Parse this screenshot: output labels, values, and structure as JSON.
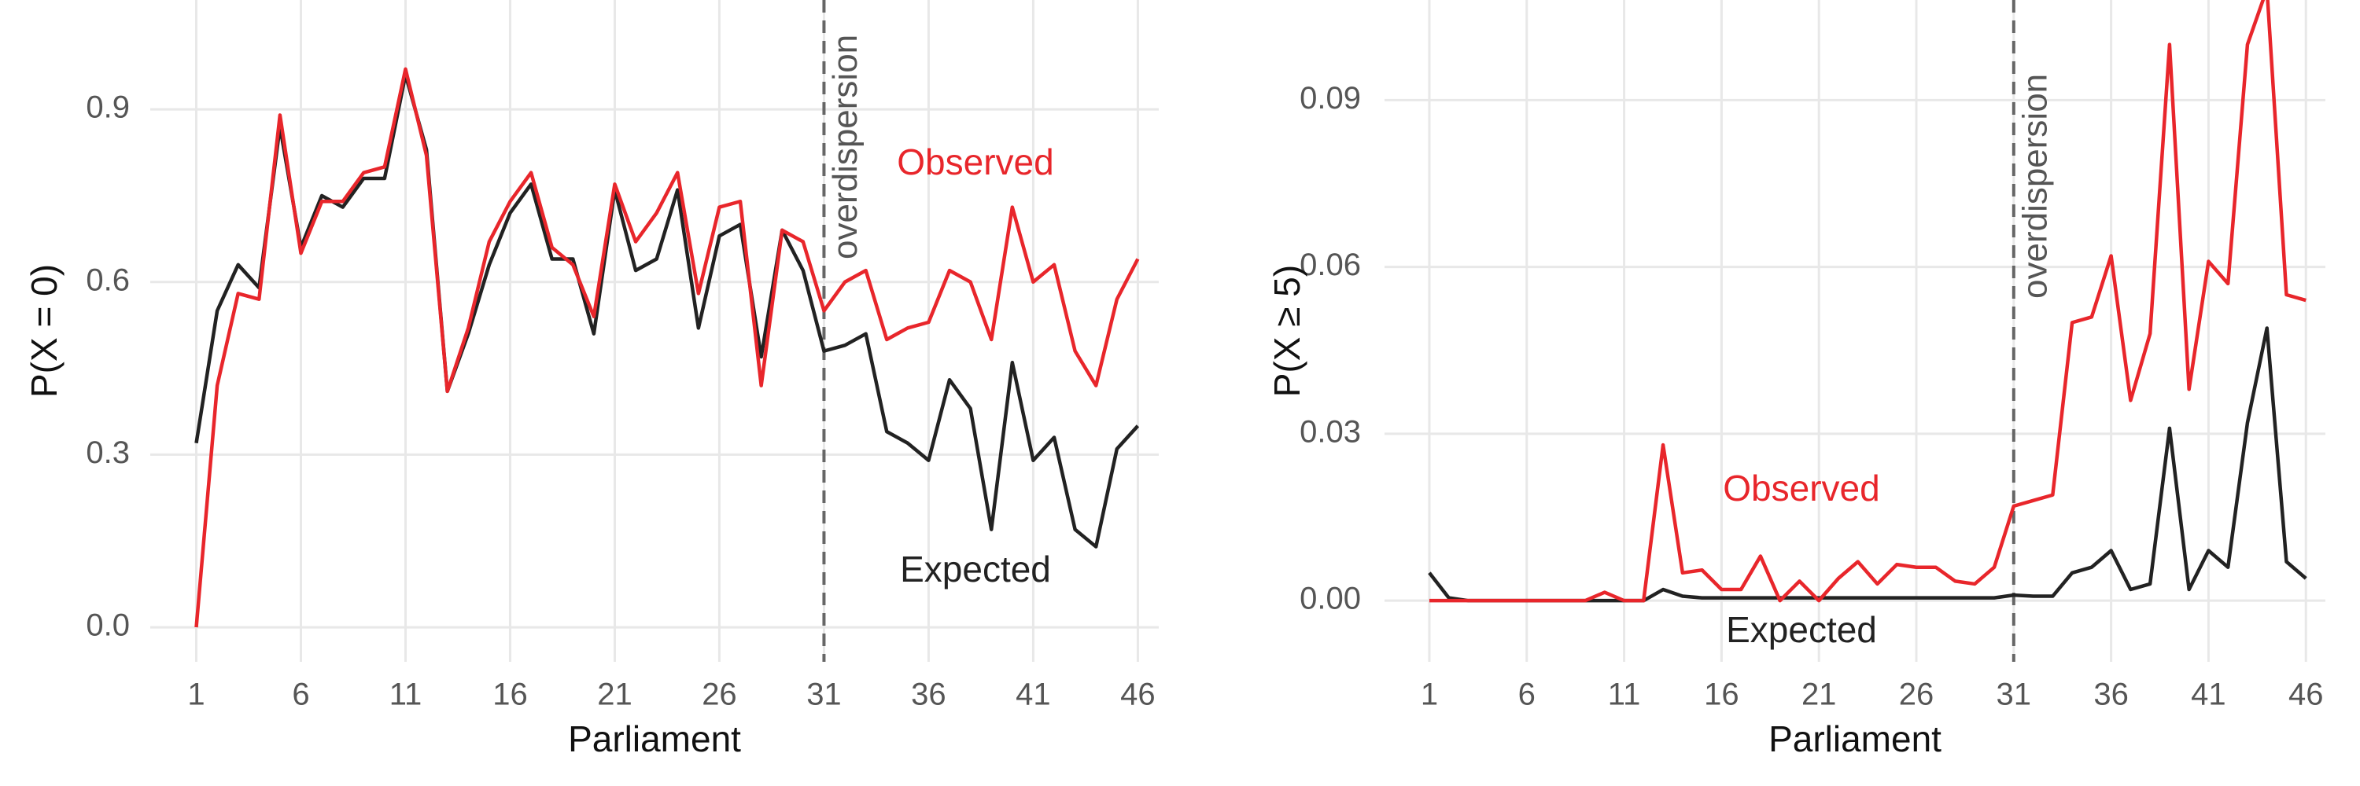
{
  "chart_data": [
    {
      "type": "line",
      "ylabel": "P(X = 0)",
      "xlabel": "Parliament",
      "x": [
        1,
        2,
        3,
        4,
        5,
        6,
        7,
        8,
        9,
        10,
        11,
        12,
        13,
        14,
        15,
        16,
        17,
        18,
        19,
        20,
        21,
        22,
        23,
        24,
        25,
        26,
        27,
        28,
        29,
        30,
        31,
        32,
        33,
        34,
        35,
        36,
        37,
        38,
        39,
        40,
        41,
        42,
        43,
        44,
        45,
        46
      ],
      "series": [
        {
          "name": "Expected",
          "color": "#222222",
          "values": [
            0.32,
            0.55,
            0.63,
            0.59,
            0.87,
            0.66,
            0.75,
            0.73,
            0.78,
            0.78,
            0.96,
            0.83,
            0.41,
            0.51,
            0.63,
            0.72,
            0.77,
            0.64,
            0.64,
            0.51,
            0.76,
            0.62,
            0.64,
            0.76,
            0.52,
            0.68,
            0.7,
            0.47,
            0.69,
            0.62,
            0.48,
            0.49,
            0.51,
            0.34,
            0.32,
            0.29,
            0.43,
            0.38,
            0.17,
            0.46,
            0.29,
            0.33,
            0.17,
            0.14,
            0.31,
            0.35
          ]
        },
        {
          "name": "Observed",
          "color": "#e8262b",
          "values": [
            0.0,
            0.42,
            0.58,
            0.57,
            0.89,
            0.65,
            0.74,
            0.74,
            0.79,
            0.8,
            0.97,
            0.82,
            0.41,
            0.52,
            0.67,
            0.74,
            0.79,
            0.66,
            0.63,
            0.54,
            0.77,
            0.67,
            0.72,
            0.79,
            0.58,
            0.73,
            0.74,
            0.42,
            0.69,
            0.67,
            0.55,
            0.6,
            0.62,
            0.5,
            0.52,
            0.53,
            0.62,
            0.6,
            0.5,
            0.73,
            0.6,
            0.63,
            0.48,
            0.42,
            0.57,
            0.64
          ]
        }
      ],
      "xlim": [
        -1.2,
        47
      ],
      "ylim": [
        -0.06,
        1.09
      ],
      "xticks": [
        1,
        6,
        11,
        16,
        21,
        26,
        31,
        36,
        41,
        46
      ],
      "yticks": [
        {
          "value": 0,
          "label": "0.0"
        },
        0.3,
        0.6,
        0.9
      ],
      "vline": {
        "x": 31,
        "label": "overdispersion"
      },
      "grid": true
    },
    {
      "type": "line",
      "ylabel": "P(X ≥ 5)",
      "xlabel": "Parliament",
      "x": [
        1,
        2,
        3,
        4,
        5,
        6,
        7,
        8,
        9,
        10,
        11,
        12,
        13,
        14,
        15,
        16,
        17,
        18,
        19,
        20,
        21,
        22,
        23,
        24,
        25,
        26,
        27,
        28,
        29,
        30,
        31,
        32,
        33,
        34,
        35,
        36,
        37,
        38,
        39,
        40,
        41,
        42,
        43,
        44,
        45,
        46
      ],
      "series": [
        {
          "name": "Expected",
          "color": "#222222",
          "values": [
            0.005,
            0.0005,
            0,
            0,
            0,
            0,
            0,
            0,
            0,
            0,
            0,
            0,
            0.002,
            0.0008,
            0.0005,
            0.0005,
            0.0005,
            0.0005,
            0.0005,
            0.0005,
            0.0005,
            0.0005,
            0.0005,
            0.0005,
            0.0005,
            0.0005,
            0.0005,
            0.0005,
            0.0005,
            0.0005,
            0.001,
            0.0008,
            0.0008,
            0.005,
            0.006,
            0.009,
            0.002,
            0.003,
            0.031,
            0.002,
            0.009,
            0.006,
            0.032,
            0.049,
            0.007,
            0.004
          ]
        },
        {
          "name": "Observed",
          "color": "#e8262b",
          "values": [
            0,
            0,
            0,
            0,
            0,
            0,
            0,
            0,
            0,
            0.0015,
            0,
            0,
            0.028,
            0.005,
            0.0055,
            0.002,
            0.002,
            0.008,
            0,
            0.0035,
            0,
            0.004,
            0.007,
            0.003,
            0.0065,
            0.006,
            0.006,
            0.0035,
            0.003,
            0.006,
            0.017,
            0.018,
            0.019,
            0.05,
            0.051,
            0.062,
            0.036,
            0.048,
            0.1,
            0.038,
            0.061,
            0.057,
            0.1,
            0.11,
            0.055,
            0.054
          ]
        }
      ],
      "xlim": [
        -1.3,
        47
      ],
      "ylim": [
        -0.011,
        0.108
      ],
      "xticks": [
        1,
        6,
        11,
        16,
        21,
        26,
        31,
        36,
        41,
        46
      ],
      "yticks": [
        {
          "value": 0,
          "label": "0.00"
        },
        {
          "value": 0.03,
          "label": "0.03"
        },
        {
          "value": 0.06,
          "label": "0.06"
        },
        {
          "value": 0.09,
          "label": "0.09"
        }
      ],
      "vline": {
        "x": 31,
        "label": "overdispersion"
      },
      "grid": true
    }
  ]
}
